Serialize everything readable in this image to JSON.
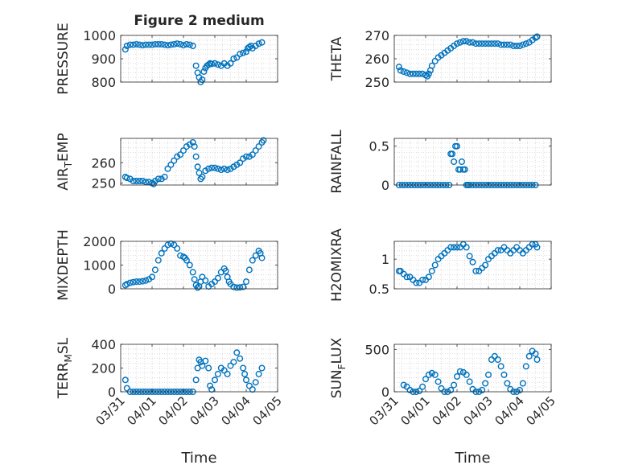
{
  "chart_data": [
    {
      "type": "scatter",
      "title": "Figure 2 medium",
      "ylabel": "PRESSURE",
      "ylim": [
        800,
        1000
      ],
      "yticks": [
        800,
        900,
        1000
      ],
      "xlim": [
        0,
        5
      ],
      "grid": true,
      "marker_color": "#0072BD",
      "series": [
        {
          "x": [
            0.15,
            0.2,
            0.3,
            0.4,
            0.5,
            0.6,
            0.7,
            0.8,
            0.9,
            1.0,
            1.1,
            1.2,
            1.3,
            1.4,
            1.5,
            1.6,
            1.7,
            1.8,
            1.9,
            2.0,
            2.1,
            2.2,
            2.3,
            2.4,
            2.45,
            2.5,
            2.55,
            2.6,
            2.65,
            2.7,
            2.75,
            2.8,
            2.85,
            2.9,
            3.0,
            3.1,
            3.2,
            3.3,
            3.4,
            3.5,
            3.6,
            3.7,
            3.8,
            3.9,
            4.0,
            4.05,
            4.1,
            4.15,
            4.2,
            4.3,
            4.4,
            4.5
          ],
          "values": [
            940,
            955,
            960,
            960,
            962,
            960,
            958,
            960,
            960,
            960,
            962,
            962,
            962,
            960,
            958,
            960,
            962,
            965,
            962,
            958,
            962,
            960,
            955,
            870,
            840,
            820,
            800,
            810,
            845,
            860,
            870,
            875,
            880,
            878,
            880,
            875,
            870,
            880,
            870,
            880,
            900,
            905,
            920,
            925,
            930,
            945,
            950,
            955,
            945,
            955,
            965,
            970
          ]
        }
      ]
    },
    {
      "type": "scatter",
      "ylabel": "THETA",
      "ylim": [
        250,
        270
      ],
      "yticks": [
        250,
        260,
        270
      ],
      "xlim": [
        0,
        5
      ],
      "grid": true,
      "marker_color": "#0072BD",
      "series": [
        {
          "x": [
            0.15,
            0.2,
            0.3,
            0.4,
            0.5,
            0.6,
            0.7,
            0.8,
            0.9,
            1.0,
            1.05,
            1.1,
            1.15,
            1.2,
            1.3,
            1.4,
            1.5,
            1.6,
            1.7,
            1.8,
            1.9,
            2.0,
            2.1,
            2.2,
            2.3,
            2.4,
            2.5,
            2.6,
            2.7,
            2.8,
            2.9,
            3.0,
            3.1,
            3.2,
            3.3,
            3.4,
            3.5,
            3.6,
            3.7,
            3.8,
            3.9,
            4.0,
            4.1,
            4.2,
            4.3,
            4.4,
            4.5,
            4.55
          ],
          "values": [
            256.5,
            255,
            254.5,
            254,
            253.5,
            253.5,
            253.5,
            253.5,
            253.5,
            253,
            252.5,
            253.5,
            255,
            257,
            259,
            260.5,
            261.5,
            262.5,
            263.5,
            264.5,
            265.5,
            266.5,
            267,
            267.5,
            267.5,
            267,
            267,
            266.5,
            266.5,
            266.5,
            266.5,
            266.5,
            266.5,
            266.5,
            266.5,
            266,
            266,
            266,
            266,
            265.5,
            265.5,
            265.5,
            266,
            266.5,
            267,
            268,
            269,
            269.5
          ]
        }
      ]
    },
    {
      "type": "scatter",
      "ylabel": "AIR",
      "ylabel_sub": "T",
      "ylabel_rest": "EMP",
      "ylim": [
        249,
        272
      ],
      "yticks": [
        250,
        260
      ],
      "xlim": [
        0,
        5
      ],
      "grid": true,
      "marker_color": "#0072BD",
      "series": [
        {
          "x": [
            0.15,
            0.2,
            0.3,
            0.4,
            0.5,
            0.6,
            0.7,
            0.8,
            0.9,
            1.0,
            1.05,
            1.1,
            1.2,
            1.3,
            1.4,
            1.5,
            1.6,
            1.7,
            1.8,
            1.9,
            2.0,
            2.1,
            2.2,
            2.3,
            2.35,
            2.4,
            2.45,
            2.5,
            2.55,
            2.6,
            2.7,
            2.8,
            2.9,
            3.0,
            3.1,
            3.2,
            3.3,
            3.4,
            3.5,
            3.6,
            3.7,
            3.8,
            3.9,
            4.0,
            4.1,
            4.2,
            4.3,
            4.4,
            4.5,
            4.55
          ],
          "values": [
            253,
            252.5,
            252,
            251,
            251,
            251,
            251,
            250.5,
            250.5,
            250,
            249.5,
            251,
            252,
            252,
            253,
            257,
            259,
            261,
            263,
            264,
            266,
            268,
            269,
            270,
            268,
            263,
            258,
            255,
            252,
            253,
            256,
            257,
            257.5,
            257.5,
            257,
            256.5,
            257,
            256.5,
            257,
            258,
            259,
            260,
            262,
            263,
            263,
            264,
            266,
            268,
            270,
            271
          ]
        }
      ]
    },
    {
      "type": "scatter",
      "ylabel": "RAINFALL",
      "ylim": [
        0,
        0.6
      ],
      "yticks": [
        0,
        0.5
      ],
      "xlim": [
        0,
        5
      ],
      "grid": true,
      "marker_color": "#0072BD",
      "series": [
        {
          "x": [
            0.15,
            0.25,
            0.35,
            0.45,
            0.55,
            0.65,
            0.75,
            0.85,
            0.95,
            1.05,
            1.15,
            1.25,
            1.35,
            1.45,
            1.55,
            1.65,
            1.75,
            1.8,
            1.85,
            1.9,
            1.95,
            2.0,
            2.05,
            2.1,
            2.15,
            2.2,
            2.25,
            2.3,
            2.35,
            2.4,
            2.5,
            2.6,
            2.7,
            2.8,
            2.9,
            3.0,
            3.1,
            3.2,
            3.3,
            3.4,
            3.5,
            3.6,
            3.7,
            3.8,
            3.9,
            4.0,
            4.1,
            4.2,
            4.3,
            4.4,
            4.5
          ],
          "values": [
            0,
            0,
            0,
            0,
            0,
            0,
            0,
            0,
            0,
            0,
            0,
            0,
            0,
            0,
            0,
            0,
            0,
            0.4,
            0.4,
            0.3,
            0.5,
            0.5,
            0.2,
            0.2,
            0.3,
            0.2,
            0.2,
            0,
            0,
            0,
            0,
            0,
            0,
            0,
            0,
            0,
            0,
            0,
            0,
            0,
            0,
            0,
            0,
            0,
            0,
            0,
            0,
            0,
            0,
            0,
            0
          ]
        }
      ]
    },
    {
      "type": "scatter",
      "ylabel": "MIXDEPTH",
      "ylim": [
        0,
        2000
      ],
      "yticks": [
        0,
        1000,
        2000
      ],
      "xlim": [
        0,
        5
      ],
      "grid": true,
      "marker_color": "#0072BD",
      "series": [
        {
          "x": [
            0.15,
            0.2,
            0.3,
            0.4,
            0.5,
            0.6,
            0.7,
            0.8,
            0.9,
            1.0,
            1.1,
            1.2,
            1.3,
            1.4,
            1.5,
            1.6,
            1.7,
            1.8,
            1.9,
            2.0,
            2.05,
            2.1,
            2.2,
            2.3,
            2.35,
            2.4,
            2.45,
            2.5,
            2.55,
            2.6,
            2.7,
            2.8,
            2.9,
            3.0,
            3.1,
            3.2,
            3.3,
            3.35,
            3.4,
            3.45,
            3.5,
            3.6,
            3.7,
            3.8,
            3.9,
            4.0,
            4.1,
            4.2,
            4.3,
            4.4,
            4.45,
            4.5
          ],
          "values": [
            150,
            200,
            250,
            280,
            300,
            300,
            320,
            350,
            400,
            500,
            800,
            1200,
            1500,
            1700,
            1850,
            1900,
            1850,
            1700,
            1400,
            1350,
            1300,
            1200,
            1000,
            700,
            400,
            150,
            50,
            100,
            300,
            500,
            350,
            100,
            200,
            300,
            450,
            700,
            850,
            750,
            500,
            300,
            200,
            80,
            50,
            60,
            80,
            300,
            800,
            1200,
            1400,
            1600,
            1500,
            1300
          ]
        }
      ]
    },
    {
      "type": "scatter",
      "ylabel": "H2OMIXRA",
      "ylim": [
        0.5,
        1.3
      ],
      "yticks": [
        0.5,
        1
      ],
      "xlim": [
        0,
        5
      ],
      "grid": true,
      "marker_color": "#0072BD",
      "series": [
        {
          "x": [
            0.15,
            0.2,
            0.3,
            0.4,
            0.5,
            0.6,
            0.7,
            0.8,
            0.9,
            1.0,
            1.1,
            1.2,
            1.3,
            1.4,
            1.5,
            1.6,
            1.7,
            1.8,
            1.9,
            2.0,
            2.1,
            2.2,
            2.3,
            2.4,
            2.5,
            2.6,
            2.7,
            2.8,
            2.9,
            3.0,
            3.1,
            3.2,
            3.3,
            3.4,
            3.5,
            3.6,
            3.7,
            3.8,
            3.9,
            4.0,
            4.1,
            4.2,
            4.3,
            4.4,
            4.5,
            4.55
          ],
          "values": [
            0.8,
            0.8,
            0.75,
            0.7,
            0.7,
            0.65,
            0.6,
            0.6,
            0.65,
            0.65,
            0.7,
            0.8,
            0.9,
            1.0,
            1.05,
            1.1,
            1.15,
            1.2,
            1.2,
            1.2,
            1.2,
            1.25,
            1.2,
            1.05,
            0.95,
            0.8,
            0.8,
            0.85,
            0.9,
            1.0,
            1.05,
            1.1,
            1.15,
            1.15,
            1.2,
            1.15,
            1.1,
            1.15,
            1.2,
            1.15,
            1.1,
            1.15,
            1.2,
            1.25,
            1.25,
            1.2
          ]
        }
      ]
    },
    {
      "type": "scatter",
      "ylabel": "TERR",
      "ylabel_sub": "M",
      "ylabel_rest": "SL",
      "ylim": [
        0,
        400
      ],
      "yticks": [
        0,
        200,
        400
      ],
      "xlim": [
        0,
        5
      ],
      "grid": true,
      "marker_color": "#0072BD",
      "series": [
        {
          "x": [
            0.15,
            0.2,
            0.3,
            0.4,
            0.5,
            0.6,
            0.7,
            0.8,
            0.9,
            1.0,
            1.1,
            1.2,
            1.3,
            1.4,
            1.5,
            1.6,
            1.7,
            1.8,
            1.9,
            2.0,
            2.1,
            2.2,
            2.3,
            2.4,
            2.45,
            2.5,
            2.55,
            2.6,
            2.7,
            2.8,
            2.85,
            2.9,
            3.0,
            3.1,
            3.2,
            3.3,
            3.4,
            3.5,
            3.6,
            3.7,
            3.8,
            3.9,
            3.95,
            4.0,
            4.1,
            4.2,
            4.3,
            4.4,
            4.5
          ],
          "values": [
            100,
            30,
            0,
            0,
            0,
            0,
            0,
            0,
            0,
            0,
            0,
            0,
            0,
            0,
            0,
            0,
            0,
            0,
            0,
            0,
            0,
            0,
            0,
            100,
            200,
            270,
            250,
            220,
            260,
            200,
            50,
            20,
            100,
            150,
            200,
            180,
            150,
            220,
            250,
            330,
            280,
            200,
            150,
            100,
            50,
            20,
            80,
            150,
            200
          ]
        }
      ]
    },
    {
      "type": "scatter",
      "ylabel": "SUN",
      "ylabel_sub": "F",
      "ylabel_rest": "LUX",
      "ylim": [
        0,
        560
      ],
      "yticks": [
        0,
        500
      ],
      "xlim": [
        0,
        5
      ],
      "grid": true,
      "marker_color": "#0072BD",
      "series": [
        {
          "x": [
            0.3,
            0.4,
            0.5,
            0.6,
            0.7,
            0.8,
            0.9,
            1.0,
            1.1,
            1.2,
            1.3,
            1.4,
            1.5,
            1.6,
            1.7,
            1.8,
            1.9,
            2.0,
            2.1,
            2.2,
            2.3,
            2.4,
            2.5,
            2.6,
            2.7,
            2.8,
            2.9,
            3.0,
            3.1,
            3.2,
            3.3,
            3.4,
            3.5,
            3.6,
            3.7,
            3.8,
            3.9,
            4.0,
            4.1,
            4.2,
            4.3,
            4.4,
            4.5,
            4.55
          ],
          "values": [
            80,
            60,
            20,
            0,
            0,
            10,
            60,
            150,
            200,
            220,
            200,
            120,
            40,
            0,
            0,
            20,
            80,
            180,
            240,
            230,
            200,
            120,
            30,
            0,
            0,
            20,
            100,
            200,
            380,
            420,
            380,
            300,
            200,
            100,
            30,
            0,
            0,
            20,
            100,
            300,
            420,
            480,
            450,
            380
          ]
        }
      ]
    }
  ],
  "x_axis": {
    "xlabel": "Time",
    "tick_labels": [
      "03/31",
      "04/01",
      "04/02",
      "04/03",
      "04/04",
      "04/05"
    ]
  }
}
